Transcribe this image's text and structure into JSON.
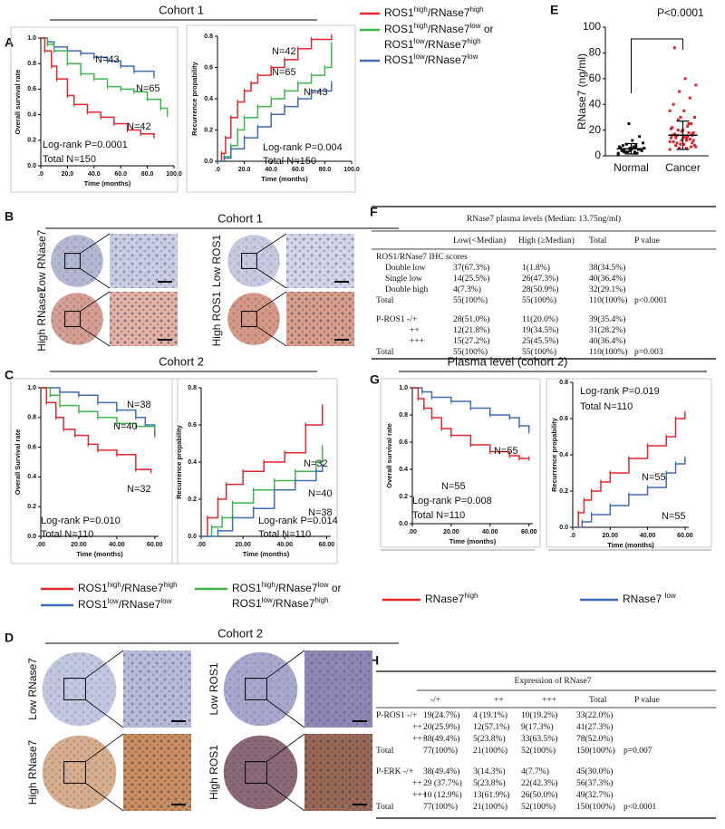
{
  "panel_labels": [
    "A",
    "B",
    "C",
    "D",
    "E",
    "F",
    "G",
    "H"
  ],
  "cohort_titles": [
    "Cohort 1",
    "Cohort 1",
    "Cohort 2",
    "Cohort 2"
  ],
  "plasma_title": "Plasma level (cohort 2)",
  "legend_A": [
    {
      "color": "#e8262b",
      "lines": [
        [
          "ROS1",
          "high",
          "/RNase7",
          "high"
        ]
      ]
    },
    {
      "color": "#3cb94a",
      "lines": [
        [
          "ROS1",
          "high",
          "/RNase7",
          "low",
          " or"
        ],
        [
          "ROS1",
          "low",
          "/RNase7",
          "high"
        ]
      ]
    },
    {
      "color": "#3f6db3",
      "lines": [
        [
          "ROS1",
          "low",
          "/RNase7",
          "low"
        ]
      ]
    }
  ],
  "legend_C": [
    {
      "color": "#e8262b",
      "lines": [
        [
          "ROS1",
          "high",
          "/RNase7",
          "high"
        ]
      ]
    },
    {
      "color": "#3cb94a",
      "lines": [
        [
          "ROS1",
          "high",
          "/RNase7",
          "low",
          " or"
        ],
        [
          "ROS1",
          "low",
          "/RNase7",
          "high"
        ]
      ]
    },
    {
      "color": "#3f6db3",
      "lines": [
        [
          "ROS1",
          "low",
          "/RNase7",
          "low"
        ]
      ]
    }
  ],
  "legend_G": [
    {
      "color": "#e8262b",
      "lines": [
        [
          "RNase7",
          "high"
        ]
      ]
    },
    {
      "color": "#3f6db3",
      "lines": [
        [
          "RNase7 ",
          "low"
        ]
      ]
    }
  ],
  "ihc_B": {
    "labels": [
      "Low RNase7",
      "High RNase7",
      "Low ROS1",
      "High ROS1"
    ]
  },
  "ihc_D": {
    "labels": [
      "Low RNase7",
      "High RNase7",
      "Low ROS1",
      "High ROS1"
    ]
  },
  "table_F": {
    "title": "RNase7 plasma levels (Median: 13.75ng/ml)",
    "header": [
      "Low(<Median)",
      "High (≥Median)",
      "Total",
      "P value"
    ],
    "rows": [
      {
        "label": "ROS1/RNase7 IHC scores"
      },
      {
        "label": "Double low",
        "cells": [
          "37(67.3%)",
          "1(1.8%)",
          "38(34.5%)"
        ]
      },
      {
        "label": "Single low",
        "cells": [
          "14(25.5%)",
          "26(47.3%)",
          "40(36.4%)"
        ]
      },
      {
        "label": "Double high",
        "cells": [
          "4(7.3%)",
          "28(50.9%)",
          "32(29.1%)"
        ]
      },
      {
        "label": "Total",
        "cells": [
          "55(100%)",
          "55(100%)",
          "110(100%)"
        ],
        "p": "p<0.0001"
      },
      {
        "label": "P-ROS1 -/+",
        "cells": [
          "28(51.0%)",
          "11(20.0%)",
          "39(35.4%)"
        ]
      },
      {
        "label": "++",
        "cells": [
          "12(21.8%)",
          "19(34.5%)",
          "31(28.2%)"
        ]
      },
      {
        "label": "+++",
        "cells": [
          "15(27.2%)",
          "25(45.5%)",
          "40(36.4%)"
        ]
      },
      {
        "label": "Total",
        "cells": [
          "55(100%)",
          "55(100%)",
          "110(100%)"
        ],
        "p": "p=0.003"
      }
    ]
  },
  "table_H": {
    "title": "Expression of RNase7",
    "header": [
      "-/+",
      "++",
      "+++",
      "Total",
      "P value"
    ],
    "rows": [
      {
        "label": "P-ROS1 -/+",
        "cells": [
          "19(24.7%)",
          "4 (19.1%)",
          "10(19.2%)",
          "33(22.0%)"
        ]
      },
      {
        "label": "++",
        "cells": [
          "20(25.9%)",
          "12(57.1%)",
          "9(17.3%)",
          "41(27.3%)"
        ]
      },
      {
        "label": "+++",
        "cells": [
          "38(49.4%)",
          "5(23.8%)",
          "33(63.5%)",
          "78(52.0%)"
        ]
      },
      {
        "label": "Total",
        "cells": [
          "77(100%)",
          "21(100%)",
          "52(100%)",
          "150(100%)"
        ],
        "p": "p=0.007"
      },
      {
        "label": "P-ERK -/+",
        "cells": [
          "38(49.4%)",
          "3(14.3%)",
          "4(7.7%)",
          "45(30.0%)"
        ]
      },
      {
        "label": "++",
        "cells": [
          "29 (37.7%)",
          "5(23.8%)",
          "22(42.3%)",
          "56(37.3%)"
        ]
      },
      {
        "label": "+++",
        "cells": [
          "10 (12.9%)",
          "13(61.9%)",
          "26(50.0%)",
          "49(32.7%)"
        ]
      },
      {
        "label": "Total",
        "cells": [
          "77(100%)",
          "21(100%)",
          "52(100%)",
          "150(100%)"
        ],
        "p": "p<0.0001"
      }
    ]
  },
  "chart_data": [
    {
      "type": "line",
      "xlabel": "Time (months)",
      "ylabel": "Overall survival rate",
      "xlim": [
        0,
        100
      ],
      "ylim": [
        0,
        1
      ],
      "xticks": [
        {
          "value": 0,
          "label": ".0"
        },
        {
          "value": 20,
          "label": "20.0"
        },
        {
          "value": 40,
          "label": "40.0"
        },
        {
          "value": 60,
          "label": "60.0"
        },
        {
          "value": 80,
          "label": "80.0"
        },
        {
          "value": 100,
          "label": "100.0"
        }
      ],
      "yticks": [
        {
          "value": 0,
          "label": "0.0"
        },
        0.2,
        0.4,
        0.6,
        0.8,
        {
          "value": 1,
          "label": "1.0"
        }
      ],
      "series": [
        {
          "color": "#3f6db3",
          "x": [
            0,
            5,
            10,
            20,
            30,
            40,
            50,
            60,
            70,
            85
          ],
          "values": [
            1,
            0.97,
            0.93,
            0.9,
            0.88,
            0.85,
            0.82,
            0.78,
            0.74,
            0.7
          ]
        },
        {
          "color": "#3cb94a",
          "x": [
            0,
            5,
            10,
            20,
            30,
            40,
            50,
            60,
            70,
            80,
            90,
            95
          ],
          "values": [
            1,
            0.95,
            0.9,
            0.8,
            0.72,
            0.68,
            0.62,
            0.6,
            0.58,
            0.52,
            0.45,
            0.4
          ]
        },
        {
          "color": "#e8262b",
          "x": [
            0,
            3,
            8,
            12,
            20,
            25,
            35,
            45,
            55,
            65,
            75,
            85
          ],
          "values": [
            1,
            0.9,
            0.78,
            0.68,
            0.55,
            0.48,
            0.42,
            0.38,
            0.33,
            0.28,
            0.25,
            0.23
          ]
        }
      ],
      "annotations": [
        "N=43",
        "N=65",
        "N=42",
        "Log-rank P=0.0001",
        "Total N=150"
      ]
    },
    {
      "type": "line",
      "xlabel": "Time (months)",
      "ylabel": "Recurrence propability",
      "xlim": [
        0,
        100
      ],
      "ylim": [
        0,
        0.8
      ],
      "xticks": [
        {
          "value": 0,
          "label": ".0"
        },
        {
          "value": 20,
          "label": "20.0"
        },
        {
          "value": 40,
          "label": "40.0"
        },
        {
          "value": 60,
          "label": "60.0"
        },
        {
          "value": 80,
          "label": "80.0"
        },
        {
          "value": 100,
          "label": "100.0"
        }
      ],
      "yticks": [
        {
          "value": 0,
          "label": "0.0"
        },
        0.2,
        0.4,
        0.6,
        0.8
      ],
      "series": [
        {
          "color": "#e8262b",
          "x": [
            0,
            3,
            6,
            10,
            15,
            20,
            25,
            30,
            40,
            50,
            60,
            70,
            85
          ],
          "values": [
            0,
            0.05,
            0.15,
            0.28,
            0.38,
            0.45,
            0.5,
            0.55,
            0.6,
            0.65,
            0.72,
            0.78,
            0.8
          ]
        },
        {
          "color": "#3cb94a",
          "x": [
            0,
            5,
            10,
            15,
            20,
            30,
            40,
            50,
            60,
            70,
            80,
            85
          ],
          "values": [
            0,
            0.03,
            0.1,
            0.2,
            0.28,
            0.35,
            0.4,
            0.45,
            0.5,
            0.55,
            0.6,
            0.75
          ]
        },
        {
          "color": "#3f6db3",
          "x": [
            0,
            5,
            10,
            20,
            30,
            40,
            50,
            60,
            70,
            85
          ],
          "values": [
            0,
            0.02,
            0.08,
            0.15,
            0.22,
            0.3,
            0.35,
            0.4,
            0.45,
            0.5
          ]
        }
      ],
      "annotations": [
        "N=42",
        "N=65",
        "N=43",
        "Log-rank P=0.004",
        "Total N=150"
      ]
    },
    {
      "type": "line",
      "xlabel": "Time (months)",
      "ylabel": "Overall Survival rate",
      "xlim": [
        0,
        62
      ],
      "ylim": [
        0,
        1
      ],
      "xticks": [
        {
          "value": 0,
          "label": ".00"
        },
        {
          "value": 20,
          "label": "20.00"
        },
        {
          "value": 40,
          "label": "40.00"
        },
        {
          "value": 60,
          "label": "60.00"
        }
      ],
      "yticks": [
        {
          "value": 0,
          "label": "0.0"
        },
        0.2,
        0.4,
        0.6,
        0.8,
        {
          "value": 1,
          "label": "1.0"
        }
      ],
      "series": [
        {
          "color": "#3f6db3",
          "x": [
            0,
            10,
            20,
            30,
            40,
            50,
            55,
            60
          ],
          "values": [
            1,
            0.97,
            0.95,
            0.9,
            0.85,
            0.8,
            0.75,
            0.68
          ]
        },
        {
          "color": "#3cb94a",
          "x": [
            0,
            5,
            10,
            20,
            30,
            40,
            50,
            60
          ],
          "values": [
            1,
            0.95,
            0.88,
            0.84,
            0.8,
            0.76,
            0.74,
            0.72
          ]
        },
        {
          "color": "#e8262b",
          "x": [
            0,
            3,
            8,
            12,
            18,
            25,
            30,
            40,
            50,
            58
          ],
          "values": [
            1,
            0.9,
            0.8,
            0.72,
            0.68,
            0.62,
            0.58,
            0.55,
            0.45,
            0.44
          ]
        }
      ],
      "annotations": [
        "N=38",
        "N=40",
        "N=32",
        "Log-rank P=0.010",
        "Total N=110"
      ]
    },
    {
      "type": "line",
      "xlabel": "Time (months)",
      "ylabel": "Recurrence propability",
      "xlim": [
        0,
        62
      ],
      "ylim": [
        0,
        0.8
      ],
      "xticks": [
        {
          "value": 0,
          "label": ".00"
        },
        {
          "value": 20,
          "label": "20.00"
        },
        {
          "value": 40,
          "label": "40.00"
        },
        {
          "value": 60,
          "label": "60.00"
        }
      ],
      "yticks": [
        {
          "value": 0,
          "label": "0.0"
        },
        0.2,
        0.4,
        0.6,
        0.8
      ],
      "series": [
        {
          "color": "#e8262b",
          "x": [
            0,
            3,
            8,
            12,
            20,
            30,
            40,
            50,
            58
          ],
          "values": [
            0,
            0.1,
            0.2,
            0.28,
            0.35,
            0.4,
            0.45,
            0.6,
            0.7
          ]
        },
        {
          "color": "#3cb94a",
          "x": [
            0,
            5,
            10,
            15,
            25,
            35,
            45,
            55,
            58
          ],
          "values": [
            0,
            0.05,
            0.1,
            0.18,
            0.25,
            0.3,
            0.35,
            0.4,
            0.48
          ]
        },
        {
          "color": "#3f6db3",
          "x": [
            0,
            8,
            15,
            25,
            35,
            45,
            55,
            58
          ],
          "values": [
            0,
            0.03,
            0.1,
            0.15,
            0.25,
            0.3,
            0.35,
            0.38
          ]
        }
      ],
      "annotations": [
        "N=32",
        "N=40",
        "N=38",
        "Log-rank P=0.014",
        "Total N=110"
      ]
    },
    {
      "type": "scatter",
      "ylabel": "RNase7 (ng/ml)",
      "categories": [
        "Normal",
        "Cancer"
      ],
      "ylim": [
        0,
        100
      ],
      "yticks": [
        0,
        20,
        40,
        60,
        80,
        100
      ],
      "series": [
        {
          "color": "#111111",
          "values": [
            2,
            3,
            4,
            5,
            6,
            7,
            8,
            3,
            4,
            5,
            6,
            2,
            9,
            10,
            12,
            4,
            5,
            3,
            6,
            7,
            8,
            15,
            25,
            1,
            2,
            3,
            5,
            4,
            6,
            7
          ],
          "mean": 5.5,
          "sd": 4
        },
        {
          "color": "#e2202c",
          "values": [
            5,
            6,
            8,
            10,
            12,
            14,
            15,
            16,
            18,
            20,
            22,
            25,
            28,
            30,
            35,
            40,
            45,
            50,
            55,
            60,
            84,
            7,
            9,
            11,
            13,
            15,
            17,
            19,
            21,
            23,
            10,
            12,
            14,
            16,
            18,
            20,
            8,
            9,
            11,
            13,
            6,
            7,
            15,
            17,
            25,
            30,
            35,
            12,
            14,
            16
          ],
          "mean": 16,
          "sd": 11
        }
      ],
      "annotations": [
        "P<0.0001"
      ]
    },
    {
      "type": "line",
      "xlabel": "Time (months)",
      "ylabel": "Overall survival rate",
      "xlim": [
        0,
        62
      ],
      "ylim": [
        0,
        1
      ],
      "xticks": [
        {
          "value": 0,
          "label": ".00"
        },
        {
          "value": 20,
          "label": "20.00"
        },
        {
          "value": 40,
          "label": "40.00"
        },
        {
          "value": 60,
          "label": "60.00"
        }
      ],
      "yticks": [
        {
          "value": 0,
          "label": "0.0"
        },
        0.2,
        0.4,
        0.6,
        0.8,
        {
          "value": 1,
          "label": "1.0"
        }
      ],
      "series": [
        {
          "color": "#3f6db3",
          "x": [
            0,
            5,
            10,
            20,
            30,
            40,
            50,
            55,
            60
          ],
          "values": [
            1,
            0.97,
            0.93,
            0.9,
            0.85,
            0.8,
            0.78,
            0.72,
            0.68
          ]
        },
        {
          "color": "#e8262b",
          "x": [
            0,
            3,
            6,
            10,
            15,
            20,
            30,
            40,
            50,
            55,
            60
          ],
          "values": [
            1,
            0.92,
            0.85,
            0.78,
            0.7,
            0.65,
            0.58,
            0.53,
            0.5,
            0.48,
            0.48
          ]
        }
      ],
      "annotations": [
        "N=55",
        "N=55",
        "Log-rank P=0.008",
        "Total N=110"
      ]
    },
    {
      "type": "line",
      "xlabel": "Time (months)",
      "ylabel": "Recurrence propability",
      "xlim": [
        0,
        62
      ],
      "ylim": [
        0,
        0.8
      ],
      "xticks": [
        {
          "value": 0,
          "label": ".0"
        },
        {
          "value": 20,
          "label": "20.00"
        },
        {
          "value": 40,
          "label": "40.00"
        },
        {
          "value": 60,
          "label": "60.00"
        }
      ],
      "yticks": [
        {
          "value": 0,
          "label": "0.0"
        },
        0.2,
        0.4,
        0.6,
        0.8
      ],
      "series": [
        {
          "color": "#e8262b",
          "x": [
            0,
            3,
            6,
            10,
            15,
            20,
            30,
            40,
            50,
            55,
            60
          ],
          "values": [
            0,
            0.08,
            0.15,
            0.2,
            0.25,
            0.3,
            0.38,
            0.45,
            0.5,
            0.6,
            0.63
          ]
        },
        {
          "color": "#3f6db3",
          "x": [
            0,
            5,
            10,
            20,
            30,
            40,
            50,
            55,
            60
          ],
          "values": [
            0,
            0.03,
            0.07,
            0.12,
            0.18,
            0.22,
            0.3,
            0.35,
            0.38
          ]
        }
      ],
      "annotations": [
        "Log-rank P=0.019",
        "Total N=110",
        "N=55",
        "N=55"
      ]
    }
  ]
}
